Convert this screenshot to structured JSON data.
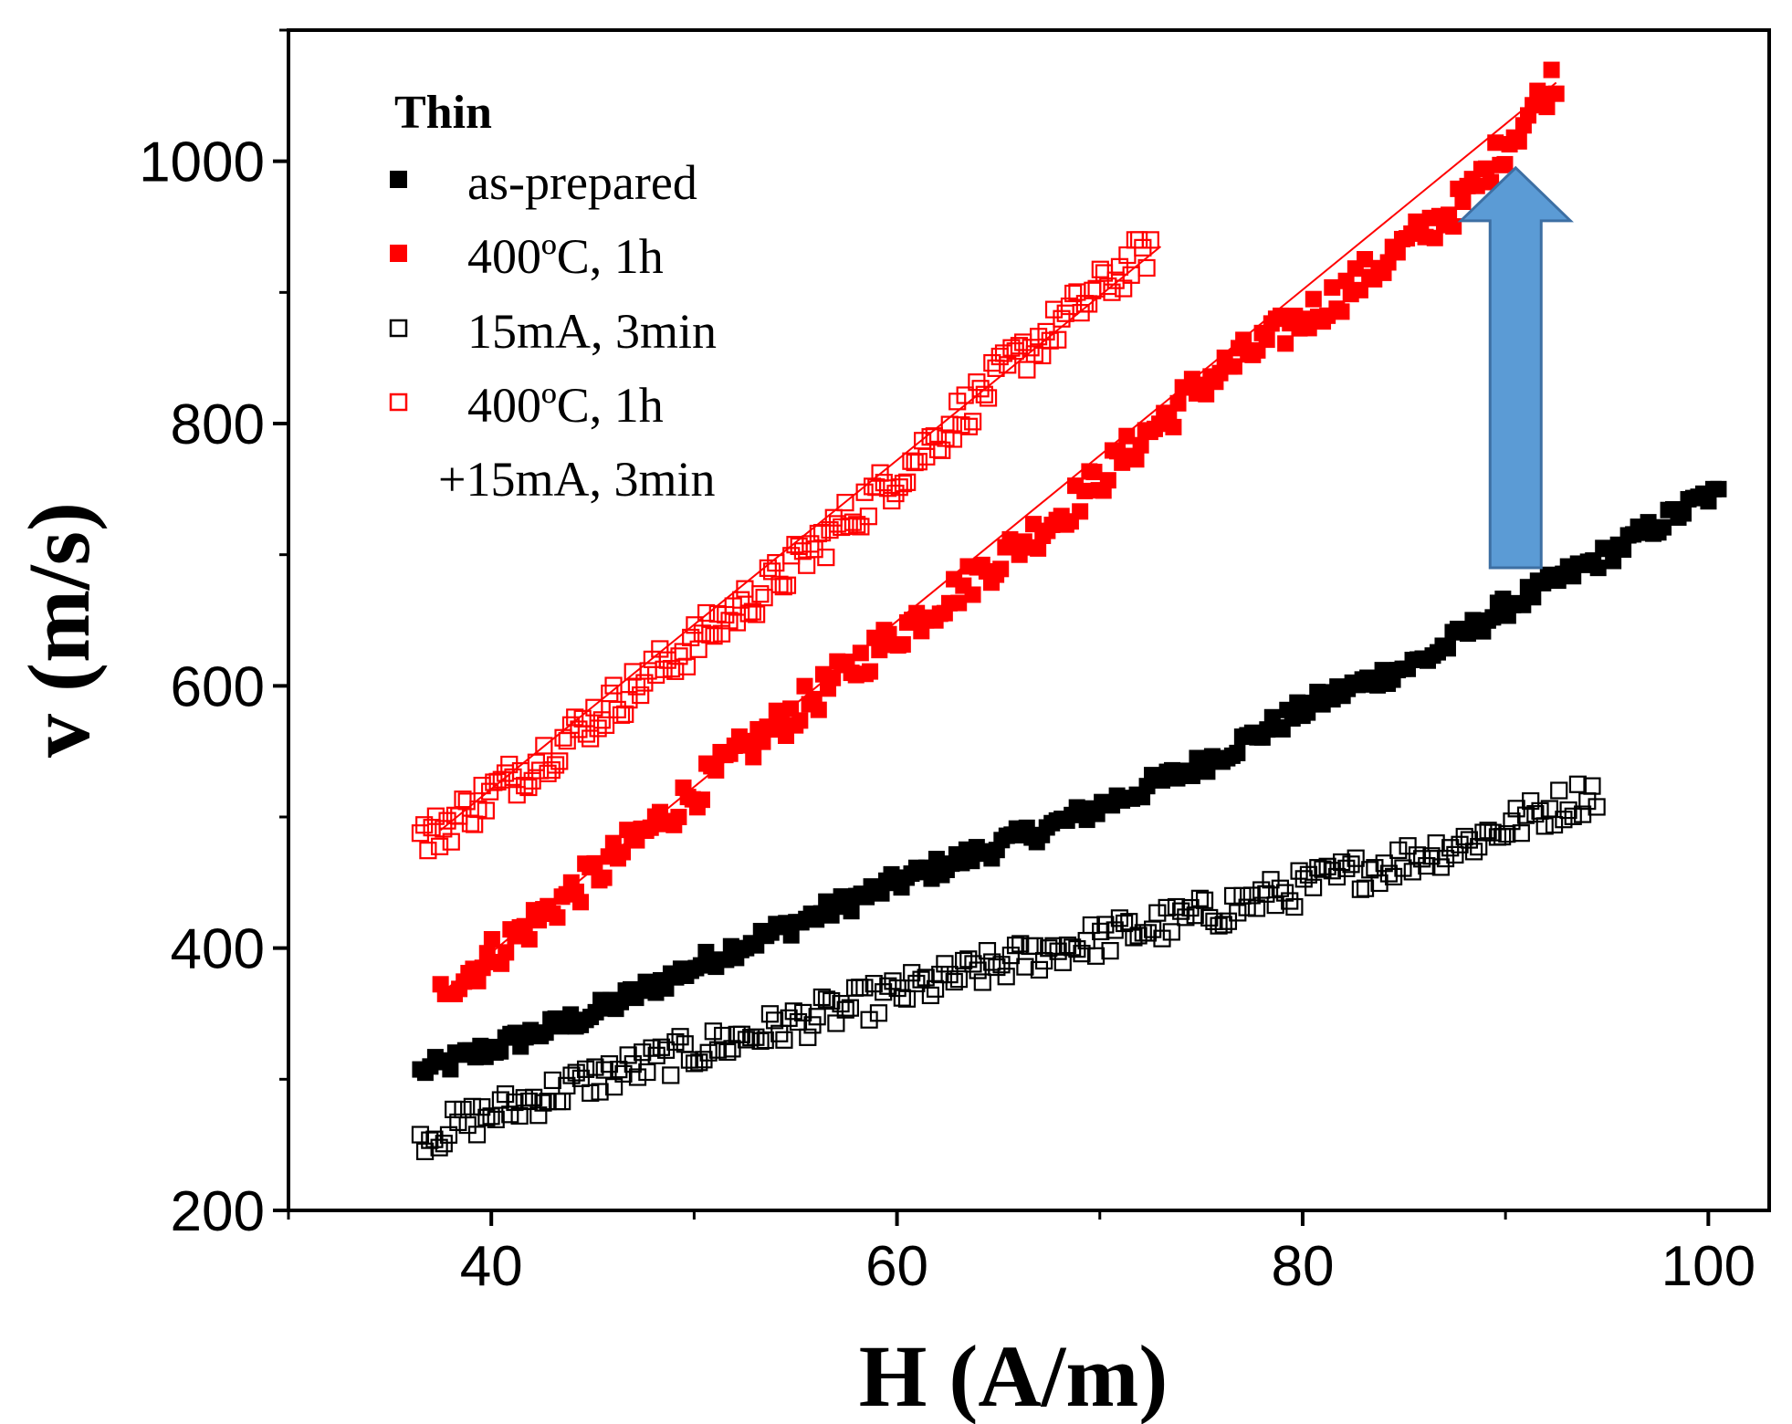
{
  "chart_data": {
    "type": "scatter",
    "title": "",
    "xlabel": "H (A/m)",
    "ylabel": "v (m/s)",
    "xlim": [
      30,
      103
    ],
    "ylim": [
      200,
      1100
    ],
    "xticks": [
      40,
      60,
      80,
      100
    ],
    "yticks": [
      200,
      400,
      600,
      800,
      1000
    ],
    "grid": false,
    "legend": {
      "title": "Thin",
      "position": "top-left",
      "entries": [
        "as-prepared",
        "400ºC, 1h",
        "15mA, 3min",
        "400ºC, 1h",
        "+15mA, 3min"
      ]
    },
    "series": [
      {
        "name": "as-prepared",
        "marker": "filled-square",
        "color": "#000000",
        "x_range": [
          36.5,
          100.5
        ],
        "y_range": [
          305,
          750
        ],
        "sample_points": [
          [
            36.5,
            305
          ],
          [
            45,
            350
          ],
          [
            52,
            400
          ],
          [
            60,
            450
          ],
          [
            68,
            495
          ],
          [
            75,
            540
          ],
          [
            81,
            590
          ],
          [
            86,
            620
          ],
          [
            90,
            660
          ],
          [
            95,
            700
          ],
          [
            100.5,
            750
          ]
        ],
        "fit": false
      },
      {
        "name": "400ºC, 1h",
        "marker": "filled-square",
        "color": "#ff0000",
        "x_range": [
          37.5,
          92.5
        ],
        "y_range": [
          365,
          1070
        ],
        "sample_points": [
          [
            37.5,
            365
          ],
          [
            45,
            455
          ],
          [
            52,
            545
          ],
          [
            60,
            640
          ],
          [
            68,
            730
          ],
          [
            75,
            830
          ],
          [
            82,
            900
          ],
          [
            88,
            970
          ],
          [
            92.5,
            1065
          ]
        ],
        "fit": {
          "x": [
            37.5,
            92.5
          ],
          "y": [
            365,
            1060
          ]
        }
      },
      {
        "name": "15mA, 3min",
        "marker": "open-square",
        "color": "#000000",
        "x_range": [
          36.5,
          94.5
        ],
        "y_range": [
          245,
          535
        ],
        "sample_points": [
          [
            36.5,
            255
          ],
          [
            45,
            300
          ],
          [
            52,
            330
          ],
          [
            60,
            365
          ],
          [
            68,
            400
          ],
          [
            75,
            425
          ],
          [
            82,
            455
          ],
          [
            88,
            480
          ],
          [
            94.5,
            520
          ]
        ],
        "fit": false
      },
      {
        "name": "400ºC, 1h +15mA, 3min",
        "marker": "open-square",
        "color": "#ff0000",
        "x_range": [
          36.5,
          72.5
        ],
        "y_range": [
          450,
          940
        ],
        "sample_points": [
          [
            37,
            485
          ],
          [
            42,
            540
          ],
          [
            48,
            610
          ],
          [
            54,
            680
          ],
          [
            60,
            760
          ],
          [
            66,
            850
          ],
          [
            72.5,
            935
          ]
        ],
        "fit": {
          "x": [
            37.5,
            73
          ],
          "y": [
            490,
            935
          ]
        }
      }
    ],
    "annotations": [
      {
        "type": "arrow",
        "direction": "up",
        "color": "#5b9bd5",
        "x": 90.5,
        "y_from": 690,
        "y_to": 995
      }
    ]
  }
}
